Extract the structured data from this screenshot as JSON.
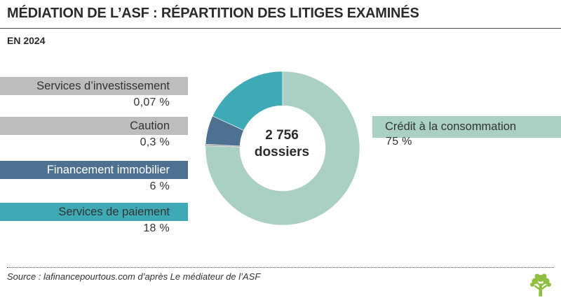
{
  "title": "MÉDIATION DE L’ASF : RÉPARTITION DES LITIGES EXAMINÉS",
  "subtitle": "EN 2024",
  "center_label": {
    "line1": "2 756",
    "line2": "dossiers"
  },
  "source": "Source : lafinancepourtous.com d’après Le médiateur de l’ASF",
  "logo_icon": "tree-icon",
  "chart_data": {
    "type": "pie",
    "donut": true,
    "start": "top, clockwise",
    "legend_placement": "sides",
    "center_text": "2 756 dossiers",
    "slices": [
      {
        "label": "Crédit à la consommation",
        "value": 75,
        "display": "75 %",
        "color": "#aacfc3"
      },
      {
        "label": "Services de paiement",
        "value": 18,
        "display": "18 %",
        "color": "#3eaab5"
      },
      {
        "label": "Financement immobilier",
        "value": 6,
        "display": "6 %",
        "color": "#4e7191"
      },
      {
        "label": "Caution",
        "value": 0.3,
        "display": "0,3 %",
        "color": "#bdbdbd"
      },
      {
        "label": "Services d’investissement",
        "value": 0.07,
        "display": "0,07 %",
        "color": "#bdbdbd"
      }
    ],
    "legend_text_colors": {
      "Services d’investissement": "#333333",
      "Caution": "#333333",
      "Financement immobilier": "#ffffff",
      "Services de paiement": "#333333",
      "Crédit à la consommation": "#333333"
    }
  }
}
